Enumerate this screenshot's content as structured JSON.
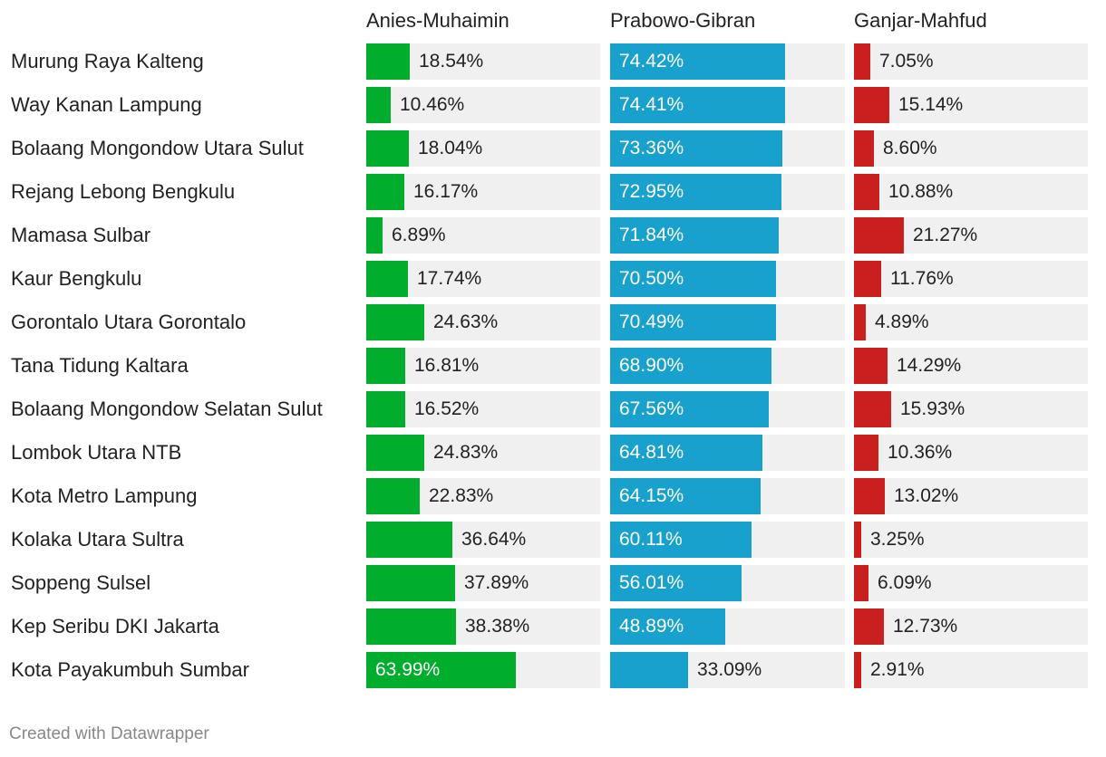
{
  "chart_data": {
    "type": "bar",
    "title": "",
    "xlabel": "",
    "ylabel": "",
    "xlim": [
      0,
      100
    ],
    "categories": [
      "Murung Raya Kalteng",
      "Way Kanan Lampung",
      "Bolaang Mongondow Utara Sulut",
      "Rejang Lebong Bengkulu",
      "Mamasa Sulbar",
      "Kaur Bengkulu",
      "Gorontalo Utara Gorontalo",
      "Tana Tidung Kaltara",
      "Bolaang Mongondow Selatan Sulut",
      "Lombok Utara NTB",
      "Kota Metro Lampung",
      "Kolaka Utara Sultra",
      "Soppeng Sulsel",
      "Kep Seribu DKI Jakarta",
      "Kota Payakumbuh Sumbar"
    ],
    "series": [
      {
        "name": "Anies-Muhaimin",
        "color": "#00ad2d",
        "values": [
          18.54,
          10.46,
          18.04,
          16.17,
          6.89,
          17.74,
          24.63,
          16.81,
          16.52,
          24.83,
          22.83,
          36.64,
          37.89,
          38.38,
          63.99
        ],
        "labels": [
          "18.54%",
          "10.46%",
          "18.04%",
          "16.17%",
          "6.89%",
          "17.74%",
          "24.63%",
          "16.81%",
          "16.52%",
          "24.83%",
          "22.83%",
          "36.64%",
          "37.89%",
          "38.38%",
          "63.99%"
        ]
      },
      {
        "name": "Prabowo-Gibran",
        "color": "#18a1cd",
        "values": [
          74.42,
          74.41,
          73.36,
          72.95,
          71.84,
          70.5,
          70.49,
          68.9,
          67.56,
          64.81,
          64.15,
          60.11,
          56.01,
          48.89,
          33.09
        ],
        "labels": [
          "74.42%",
          "74.41%",
          "73.36%",
          "72.95%",
          "71.84%",
          "70.50%",
          "70.49%",
          "68.90%",
          "67.56%",
          "64.81%",
          "64.15%",
          "60.11%",
          "56.01%",
          "48.89%",
          "33.09%"
        ]
      },
      {
        "name": "Ganjar-Mahfud",
        "color": "#c91f1f",
        "values": [
          7.05,
          15.14,
          8.6,
          10.88,
          21.27,
          11.76,
          4.89,
          14.29,
          15.93,
          10.36,
          13.02,
          3.25,
          6.09,
          12.73,
          2.91
        ],
        "labels": [
          "7.05%",
          "15.14%",
          "8.60%",
          "10.88%",
          "21.27%",
          "11.76%",
          "4.89%",
          "14.29%",
          "15.93%",
          "10.36%",
          "13.02%",
          "3.25%",
          "6.09%",
          "12.73%",
          "2.91%"
        ]
      }
    ]
  },
  "footer": {
    "credit": "Created with Datawrapper"
  }
}
